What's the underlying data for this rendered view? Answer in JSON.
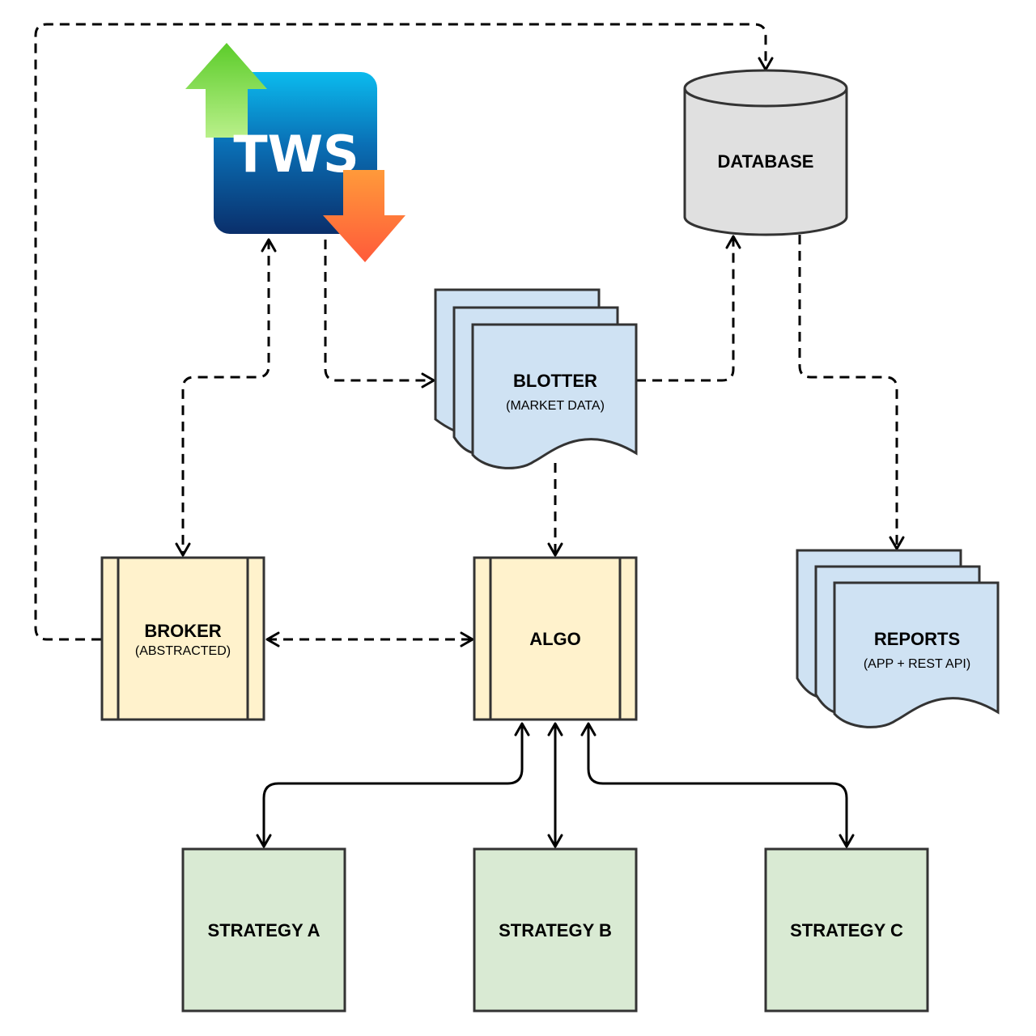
{
  "nodes": {
    "tws": {
      "label": "TWS"
    },
    "database": {
      "label": "DATABASE"
    },
    "blotter": {
      "label": "BLOTTER",
      "sub": "(MARKET DATA)"
    },
    "broker": {
      "label": "BROKER",
      "sub": "(ABSTRACTED)"
    },
    "algo": {
      "label": "ALGO"
    },
    "reports": {
      "label": "REPORTS",
      "sub": "(APP + REST API)"
    },
    "strategy_a": {
      "label": "STRATEGY A"
    },
    "strategy_b": {
      "label": "STRATEGY B"
    },
    "strategy_c": {
      "label": "STRATEGY C"
    }
  },
  "colors": {
    "process_fill": "#fff2cc",
    "document_fill": "#cfe2f3",
    "database_fill": "#e0e0e0",
    "strategy_fill": "#d9ead3",
    "stroke": "#333333",
    "tws_gradient_top": "#0bbbee",
    "tws_gradient_bottom": "#0a2f6b",
    "arrow_up_green": "#6fd63a",
    "arrow_down_orange": "#ff6a3a"
  },
  "edges": [
    {
      "from": "broker",
      "to": "database",
      "style": "dashed"
    },
    {
      "from": "tws",
      "to": "broker",
      "style": "dashed",
      "bidirectional": true
    },
    {
      "from": "tws",
      "to": "blotter",
      "style": "dashed"
    },
    {
      "from": "blotter",
      "to": "database",
      "style": "dashed"
    },
    {
      "from": "database",
      "to": "reports",
      "style": "dashed"
    },
    {
      "from": "blotter",
      "to": "algo",
      "style": "dashed"
    },
    {
      "from": "broker",
      "to": "algo",
      "style": "dashed",
      "bidirectional": true
    },
    {
      "from": "algo",
      "to": "strategy_a",
      "style": "solid",
      "bidirectional": true
    },
    {
      "from": "algo",
      "to": "strategy_b",
      "style": "solid",
      "bidirectional": true
    },
    {
      "from": "algo",
      "to": "strategy_c",
      "style": "solid",
      "bidirectional": true
    }
  ]
}
